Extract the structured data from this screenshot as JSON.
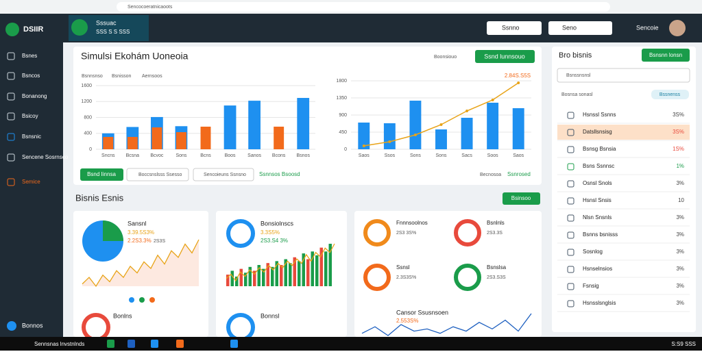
{
  "browser": {
    "url": "Sencocoeratnicaoots"
  },
  "header": {
    "logo": "DSIIR",
    "tab_title": "Sssuac",
    "tab_subtitle": "SSS S S SSS",
    "dropdowns": [
      "Ssnno",
      "Seno"
    ],
    "user": "Sencoie"
  },
  "sidebar": {
    "items": [
      "Bsnes",
      "Bsncos",
      "Bonanong",
      "Bsicoy",
      "Bsnsnic",
      "Sencene Sosrnsco",
      "Semice"
    ],
    "bottom": "Bonnos"
  },
  "main_card": {
    "title": "Simulsi Ekohám Uoneoia",
    "link": "Boonsiouo",
    "button": "Ssnd lunnsouo",
    "tabs": [
      "Bsnnsnso",
      "Bsnisson",
      "Aernsoos"
    ],
    "left_chart": {
      "type": "bar",
      "categories": [
        "Sncns",
        "Bcsna",
        "Bcvoc",
        "Sons",
        "Bcns",
        "Boos",
        "Sanos",
        "Bcons",
        "Bsnos"
      ],
      "series": [
        {
          "name": "Bsnnsnso",
          "color": "#1e90f0",
          "values": [
            400,
            560,
            810,
            580,
            null,
            1100,
            1220,
            null,
            1290
          ]
        },
        {
          "name": "Bsnisson",
          "color": "#f26a1b",
          "values": [
            310,
            310,
            550,
            430,
            568,
            null,
            null,
            568,
            null
          ]
        }
      ],
      "ylim": [
        0,
        1600
      ],
      "yticks": [
        0,
        400,
        800,
        1200,
        1600
      ]
    },
    "right_chart": {
      "type": "bar_line",
      "categories": [
        "Saos",
        "Ssos",
        "Sons",
        "Sons",
        "Sacs",
        "Soos",
        "Saos"
      ],
      "series": [
        {
          "name": "Bsnnsnso",
          "color": "#1e90f0",
          "values": [
            702,
            684,
            1278,
            522,
            828,
            1224,
            1080
          ]
        },
        {
          "name": "Aernsoos",
          "color": "#e8a317",
          "values": [
            90,
            198,
            378,
            648,
            1008,
            1296,
            1746
          ]
        }
      ],
      "ylim": [
        0,
        1800
      ],
      "yticks": [
        0,
        450,
        900,
        1350,
        1800
      ],
      "annotation": "2.84S.S5S"
    },
    "footer": {
      "button": "Bsnd Iinnsa",
      "chips": [
        "Boccsnslsss Ssesso",
        "Sencoieuns Ssnsno"
      ],
      "link": "Ssnnsos Bsoosd",
      "right_label": "Becnosoa",
      "right_link": "Ssnrosed"
    }
  },
  "section": {
    "title": "Bisnis Esnis",
    "button": "Bsinsoo"
  },
  "cards": {
    "c1": {
      "title": "Sansnl",
      "value1": "3.39.5S3%",
      "value2": "2.2S3.3%",
      "value3": "2S3S",
      "spark": [
        5,
        8,
        4,
        9,
        6,
        11,
        8,
        13,
        10,
        15,
        12,
        18,
        14,
        20,
        17,
        23,
        19,
        25
      ],
      "title2": "Bonlns"
    },
    "c2": {
      "title": "Bonsiolnscs",
      "value1": "3.3S5%",
      "value2": "2S3.S4 3%",
      "bars": [
        6,
        8,
        5,
        9,
        7,
        10,
        8,
        11,
        9,
        12,
        10,
        13,
        11,
        14,
        12,
        15,
        13,
        17,
        14,
        18,
        16,
        20,
        18,
        22
      ],
      "title2": "Bonnsl"
    },
    "c3": {
      "items": [
        {
          "title": "Fnnnsoolnos",
          "value": "2S3 3S%"
        },
        {
          "title": "Bsnlnls",
          "value": "2S3.3S"
        },
        {
          "title": "Ssnsl",
          "value": "2.3S3S%"
        },
        {
          "title": "Bsnslsa",
          "value": "2S3.S3S"
        }
      ],
      "bottom_title": "Cansor Ssusnsoen",
      "bottom_value": "2.553S%",
      "spark": [
        3,
        6,
        2,
        7,
        4,
        5,
        3,
        6,
        4,
        8,
        5,
        9,
        4,
        12
      ]
    }
  },
  "panel": {
    "title": "Bro bisnis",
    "button": "Bsnsnn lonsn",
    "search": "Bsnssnsnsl",
    "filter": "Bosnsa sonasl",
    "badge": "Bssnenss",
    "items": [
      {
        "name": "Hsnssl Ssnns",
        "value": "3S%"
      },
      {
        "name": "Datsllsnsisg",
        "value": "3S%"
      },
      {
        "name": "Bsnsg Bsnsia",
        "value": "1S%"
      },
      {
        "name": "Bsns Ssnnsc",
        "value": "1%"
      },
      {
        "name": "Osnsl Snols",
        "value": "3%"
      },
      {
        "name": "Hsnsl Snsis",
        "value": "10"
      },
      {
        "name": "Nlsn Snsnls",
        "value": "3%"
      },
      {
        "name": "Bsnns bsnisss",
        "value": "3%"
      },
      {
        "name": "Sosnlog",
        "value": "3%"
      },
      {
        "name": "Hsnselnsios",
        "value": "3%"
      },
      {
        "name": "Fsnsig",
        "value": "3%"
      },
      {
        "name": "Hsnsslsnglsis",
        "value": "3%"
      }
    ]
  },
  "taskbar": {
    "search": "Sennsnas lnvstnlnds",
    "clock": "S:S9 SSS"
  }
}
